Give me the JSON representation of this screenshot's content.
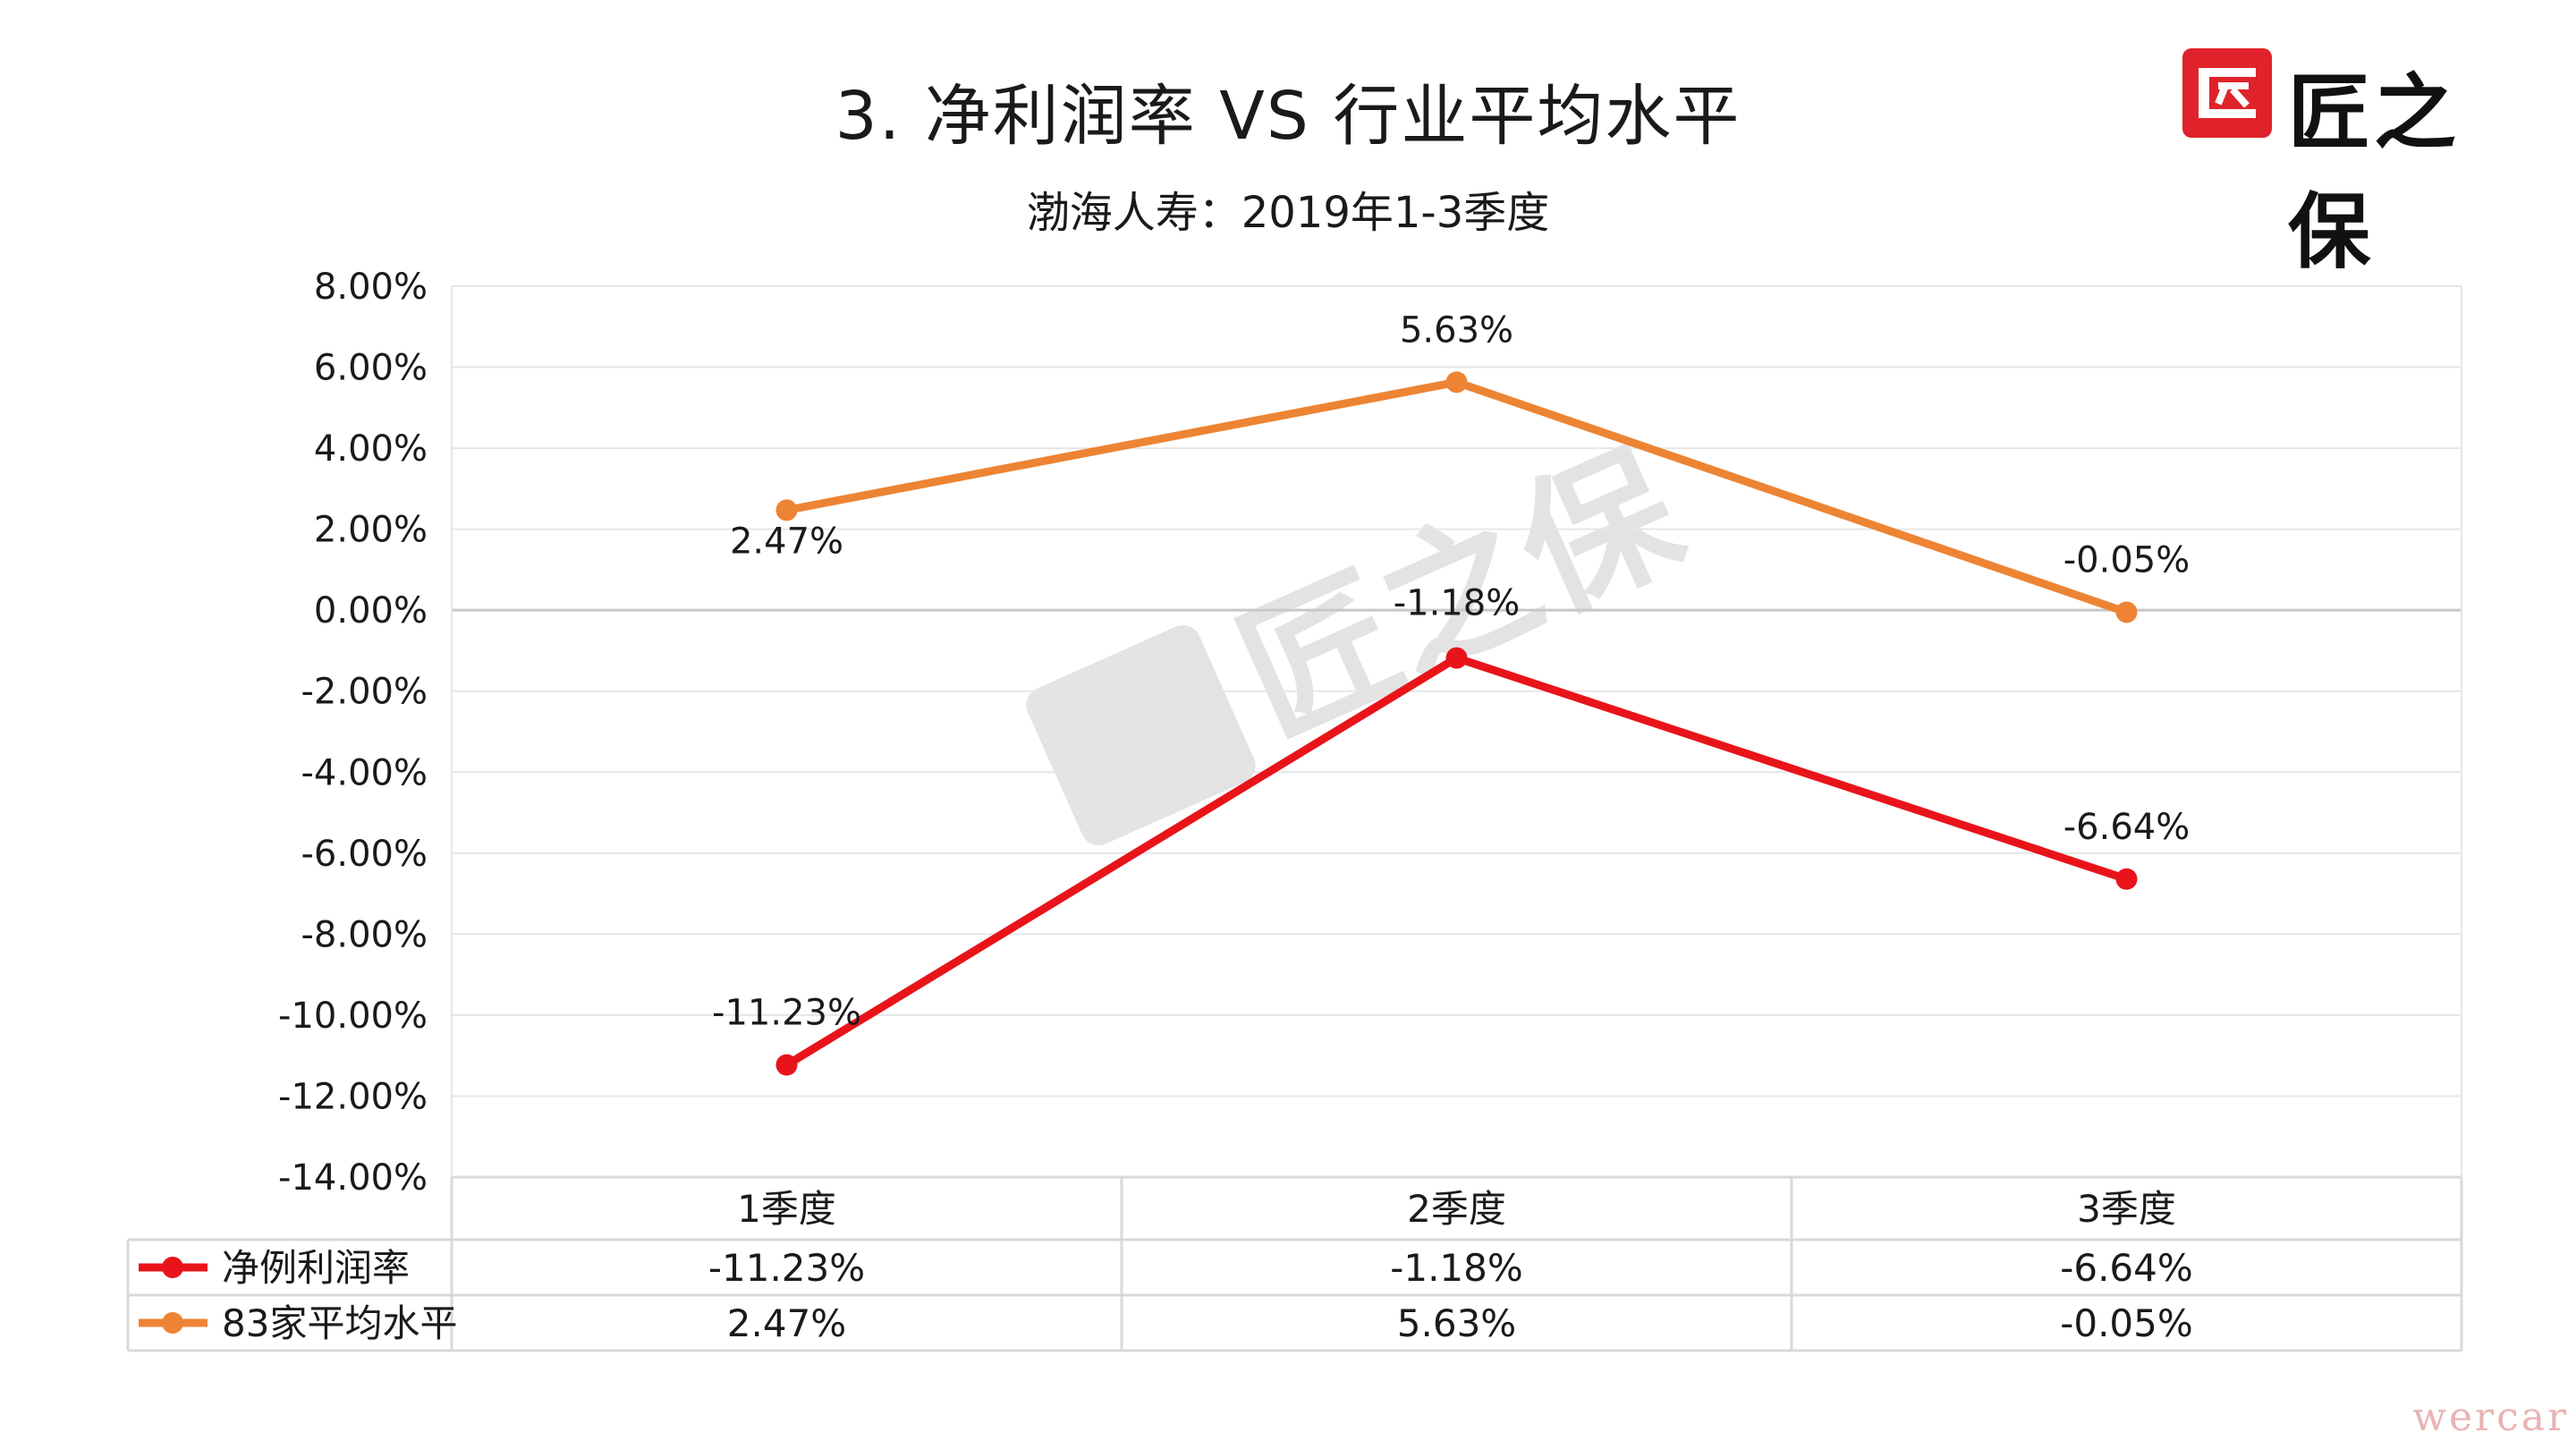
{
  "title": "3.  净利润率  VS  行业平均水平",
  "subtitle": "渤海人寿：2019年1-3季度",
  "logo": {
    "text": "匠之保",
    "color": "#e0232a"
  },
  "watermark": {
    "center_text": "匠之保",
    "corner_text": "wercar"
  },
  "chart_data": {
    "type": "line",
    "categories": [
      "1季度",
      "2季度",
      "3季度"
    ],
    "series": [
      {
        "name": "净例利润率",
        "values": [
          -11.23,
          -1.18,
          -6.64
        ],
        "labels": [
          "-11.23%",
          "-1.18%",
          "-6.64%"
        ],
        "color": "#e8141a"
      },
      {
        "name": "83家平均水平",
        "values": [
          2.47,
          5.63,
          -0.05
        ],
        "labels": [
          "2.47%",
          "5.63%",
          "-0.05%"
        ],
        "color": "#ed8433"
      }
    ],
    "ylim": [
      -14,
      8
    ],
    "yticks": [
      8,
      6,
      4,
      2,
      0,
      -2,
      -4,
      -6,
      -8,
      -10,
      -12,
      -14
    ],
    "ytick_labels": [
      "8.00%",
      "6.00%",
      "4.00%",
      "2.00%",
      "0.00%",
      "-2.00%",
      "-4.00%",
      "-6.00%",
      "-8.00%",
      "-10.00%",
      "-12.00%",
      "-14.00%"
    ],
    "grid": true,
    "legend": "data-table"
  }
}
